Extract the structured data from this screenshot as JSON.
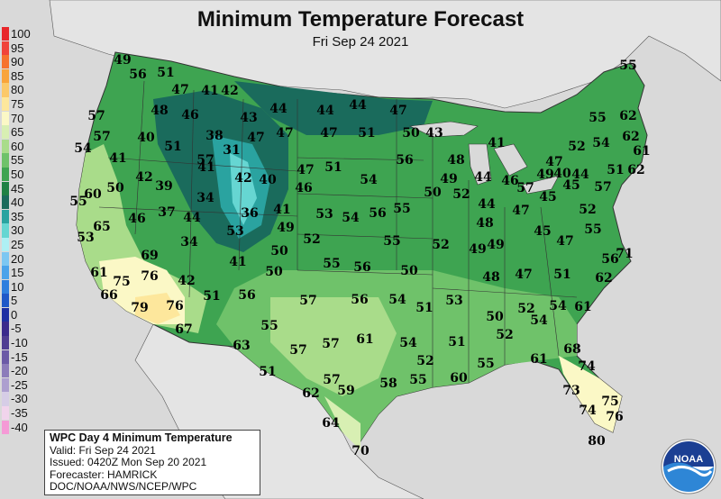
{
  "title": "Minimum Temperature Forecast",
  "subtitle": "Fri Sep 24 2021",
  "legend": [
    {
      "label": "100",
      "color": "#e8262a"
    },
    {
      "label": "95",
      "color": "#f0433a"
    },
    {
      "label": "90",
      "color": "#f6722e"
    },
    {
      "label": "85",
      "color": "#f9a43b"
    },
    {
      "label": "80",
      "color": "#fbc96a"
    },
    {
      "label": "75",
      "color": "#fde79c"
    },
    {
      "label": "70",
      "color": "#fbf8c6"
    },
    {
      "label": "65",
      "color": "#d8efb3"
    },
    {
      "label": "60",
      "color": "#a9dc8a"
    },
    {
      "label": "55",
      "color": "#6fc26a"
    },
    {
      "label": "50",
      "color": "#3ea451"
    },
    {
      "label": "45",
      "color": "#1f8144"
    },
    {
      "label": "40",
      "color": "#1a6b5c"
    },
    {
      "label": "35",
      "color": "#2aa3a0"
    },
    {
      "label": "30",
      "color": "#66d6d2"
    },
    {
      "label": "25",
      "color": "#aef0f4"
    },
    {
      "label": "20",
      "color": "#7cc7f2"
    },
    {
      "label": "15",
      "color": "#4aa3ea"
    },
    {
      "label": "10",
      "color": "#2f7fde"
    },
    {
      "label": "5",
      "color": "#1f58c8"
    },
    {
      "label": "0",
      "color": "#1d2fa3"
    },
    {
      "label": "-5",
      "color": "#3a2a8c"
    },
    {
      "label": "-10",
      "color": "#4f3d92"
    },
    {
      "label": "-15",
      "color": "#6b5aa6"
    },
    {
      "label": "-20",
      "color": "#8c7cba"
    },
    {
      "label": "-25",
      "color": "#ad9fcf"
    },
    {
      "label": "-30",
      "color": "#d6cde6"
    },
    {
      "label": "-35",
      "color": "#f1d4ec"
    },
    {
      "label": "-40",
      "color": "#f59ad6"
    }
  ],
  "infobox": {
    "heading": "WPC Day 4 Minimum Temperature",
    "valid": "Valid: Fri Sep 24 2021",
    "issued": "Issued: 0420Z Mon Sep 20 2021",
    "forecaster": "Forecaster: HAMRICK",
    "agency": "DOC/NOAA/NWS/NCEP/WPC"
  },
  "logo_text": "NOAA",
  "temperatures": [
    {
      "v": "49",
      "pos": [
        136,
        67
      ]
    },
    {
      "v": "56",
      "pos": [
        153,
        83
      ]
    },
    {
      "v": "51",
      "pos": [
        184,
        81
      ]
    },
    {
      "v": "47",
      "pos": [
        200,
        100
      ]
    },
    {
      "v": "41",
      "pos": [
        233,
        101
      ]
    },
    {
      "v": "42",
      "pos": [
        255,
        101
      ]
    },
    {
      "v": "55",
      "pos": [
        697,
        73
      ]
    },
    {
      "v": "57",
      "pos": [
        107,
        129
      ]
    },
    {
      "v": "48",
      "pos": [
        177,
        123
      ]
    },
    {
      "v": "46",
      "pos": [
        211,
        128
      ]
    },
    {
      "v": "43",
      "pos": [
        276,
        131
      ]
    },
    {
      "v": "44",
      "pos": [
        309,
        121
      ]
    },
    {
      "v": "44",
      "pos": [
        361,
        123
      ]
    },
    {
      "v": "44",
      "pos": [
        397,
        117
      ]
    },
    {
      "v": "47",
      "pos": [
        442,
        123
      ]
    },
    {
      "v": "55",
      "pos": [
        663,
        131
      ]
    },
    {
      "v": "62",
      "pos": [
        697,
        129
      ]
    },
    {
      "v": "57",
      "pos": [
        113,
        152
      ]
    },
    {
      "v": "40",
      "pos": [
        162,
        153
      ]
    },
    {
      "v": "51",
      "pos": [
        192,
        163
      ]
    },
    {
      "v": "38",
      "pos": [
        238,
        151
      ]
    },
    {
      "v": "47",
      "pos": [
        284,
        153
      ]
    },
    {
      "v": "47",
      "pos": [
        316,
        148
      ]
    },
    {
      "v": "47",
      "pos": [
        365,
        148
      ]
    },
    {
      "v": "51",
      "pos": [
        407,
        148
      ]
    },
    {
      "v": "50",
      "pos": [
        456,
        148
      ]
    },
    {
      "v": "43",
      "pos": [
        482,
        148
      ]
    },
    {
      "v": "54",
      "pos": [
        667,
        159
      ]
    },
    {
      "v": "62",
      "pos": [
        700,
        152
      ]
    },
    {
      "v": "61",
      "pos": [
        712,
        168
      ]
    },
    {
      "v": "52",
      "pos": [
        640,
        163
      ]
    },
    {
      "v": "41",
      "pos": [
        551,
        159
      ]
    },
    {
      "v": "54",
      "pos": [
        92,
        165
      ]
    },
    {
      "v": "41",
      "pos": [
        131,
        176
      ]
    },
    {
      "v": "57",
      "pos": [
        228,
        178
      ]
    },
    {
      "v": "31",
      "pos": [
        257,
        167
      ]
    },
    {
      "v": "47",
      "pos": [
        339,
        189
      ]
    },
    {
      "v": "51",
      "pos": [
        370,
        186
      ]
    },
    {
      "v": "56",
      "pos": [
        449,
        178
      ]
    },
    {
      "v": "48",
      "pos": [
        506,
        178
      ]
    },
    {
      "v": "44",
      "pos": [
        536,
        197
      ]
    },
    {
      "v": "47",
      "pos": [
        615,
        180
      ]
    },
    {
      "v": "49",
      "pos": [
        605,
        194
      ]
    },
    {
      "v": "40",
      "pos": [
        624,
        193
      ]
    },
    {
      "v": "44",
      "pos": [
        644,
        194
      ]
    },
    {
      "v": "51",
      "pos": [
        683,
        189
      ]
    },
    {
      "v": "62",
      "pos": [
        706,
        189
      ]
    },
    {
      "v": "42",
      "pos": [
        160,
        197
      ]
    },
    {
      "v": "41",
      "pos": [
        229,
        186
      ]
    },
    {
      "v": "42",
      "pos": [
        270,
        198
      ]
    },
    {
      "v": "40",
      "pos": [
        297,
        200
      ]
    },
    {
      "v": "46",
      "pos": [
        337,
        209
      ]
    },
    {
      "v": "54",
      "pos": [
        409,
        200
      ]
    },
    {
      "v": "50",
      "pos": [
        480,
        214
      ]
    },
    {
      "v": "49",
      "pos": [
        498,
        199
      ]
    },
    {
      "v": "52",
      "pos": [
        512,
        216
      ]
    },
    {
      "v": "46",
      "pos": [
        566,
        201
      ]
    },
    {
      "v": "57",
      "pos": [
        583,
        209
      ]
    },
    {
      "v": "45",
      "pos": [
        608,
        219
      ]
    },
    {
      "v": "45",
      "pos": [
        634,
        206
      ]
    },
    {
      "v": "57",
      "pos": [
        669,
        208
      ]
    },
    {
      "v": "55",
      "pos": [
        87,
        224
      ]
    },
    {
      "v": "60",
      "pos": [
        103,
        216
      ]
    },
    {
      "v": "50",
      "pos": [
        128,
        209
      ]
    },
    {
      "v": "39",
      "pos": [
        182,
        207
      ]
    },
    {
      "v": "34",
      "pos": [
        228,
        220
      ]
    },
    {
      "v": "41",
      "pos": [
        313,
        233
      ]
    },
    {
      "v": "53",
      "pos": [
        360,
        238
      ]
    },
    {
      "v": "54",
      "pos": [
        389,
        242
      ]
    },
    {
      "v": "56",
      "pos": [
        419,
        237
      ]
    },
    {
      "v": "55",
      "pos": [
        446,
        232
      ]
    },
    {
      "v": "44",
      "pos": [
        540,
        227
      ]
    },
    {
      "v": "47",
      "pos": [
        578,
        234
      ]
    },
    {
      "v": "52",
      "pos": [
        652,
        233
      ]
    },
    {
      "v": "46",
      "pos": [
        152,
        243
      ]
    },
    {
      "v": "37",
      "pos": [
        185,
        236
      ]
    },
    {
      "v": "44",
      "pos": [
        213,
        242
      ]
    },
    {
      "v": "36",
      "pos": [
        277,
        237
      ]
    },
    {
      "v": "49",
      "pos": [
        317,
        253
      ]
    },
    {
      "v": "48",
      "pos": [
        538,
        248
      ]
    },
    {
      "v": "45",
      "pos": [
        602,
        257
      ]
    },
    {
      "v": "55",
      "pos": [
        658,
        255
      ]
    },
    {
      "v": "65",
      "pos": [
        113,
        252
      ]
    },
    {
      "v": "53",
      "pos": [
        95,
        264
      ]
    },
    {
      "v": "53",
      "pos": [
        261,
        257
      ]
    },
    {
      "v": "52",
      "pos": [
        346,
        266
      ]
    },
    {
      "v": "55",
      "pos": [
        435,
        268
      ]
    },
    {
      "v": "52",
      "pos": [
        489,
        272
      ]
    },
    {
      "v": "49",
      "pos": [
        530,
        277
      ]
    },
    {
      "v": "49",
      "pos": [
        550,
        272
      ]
    },
    {
      "v": "47",
      "pos": [
        627,
        268
      ]
    },
    {
      "v": "69",
      "pos": [
        166,
        284
      ]
    },
    {
      "v": "34",
      "pos": [
        210,
        269
      ]
    },
    {
      "v": "50",
      "pos": [
        310,
        279
      ]
    },
    {
      "v": "56",
      "pos": [
        677,
        288
      ]
    },
    {
      "v": "71",
      "pos": [
        693,
        282
      ]
    },
    {
      "v": "61",
      "pos": [
        110,
        303
      ]
    },
    {
      "v": "76",
      "pos": [
        166,
        307
      ]
    },
    {
      "v": "41",
      "pos": [
        264,
        291
      ]
    },
    {
      "v": "50",
      "pos": [
        304,
        302
      ]
    },
    {
      "v": "55",
      "pos": [
        368,
        293
      ]
    },
    {
      "v": "56",
      "pos": [
        402,
        297
      ]
    },
    {
      "v": "50",
      "pos": [
        454,
        301
      ]
    },
    {
      "v": "48",
      "pos": [
        545,
        308
      ]
    },
    {
      "v": "47",
      "pos": [
        581,
        305
      ]
    },
    {
      "v": "51",
      "pos": [
        624,
        305
      ]
    },
    {
      "v": "62",
      "pos": [
        670,
        309
      ]
    },
    {
      "v": "75",
      "pos": [
        135,
        313
      ]
    },
    {
      "v": "42",
      "pos": [
        207,
        312
      ]
    },
    {
      "v": "66",
      "pos": [
        121,
        328
      ]
    },
    {
      "v": "51",
      "pos": [
        235,
        329
      ]
    },
    {
      "v": "56",
      "pos": [
        274,
        328
      ]
    },
    {
      "v": "57",
      "pos": [
        342,
        334
      ]
    },
    {
      "v": "56",
      "pos": [
        399,
        333
      ]
    },
    {
      "v": "54",
      "pos": [
        441,
        333
      ]
    },
    {
      "v": "53",
      "pos": [
        504,
        334
      ]
    },
    {
      "v": "51",
      "pos": [
        471,
        342
      ]
    },
    {
      "v": "79",
      "pos": [
        155,
        342
      ]
    },
    {
      "v": "76",
      "pos": [
        194,
        340
      ]
    },
    {
      "v": "52",
      "pos": [
        584,
        343
      ]
    },
    {
      "v": "54",
      "pos": [
        619,
        340
      ]
    },
    {
      "v": "61",
      "pos": [
        647,
        341
      ]
    },
    {
      "v": "50",
      "pos": [
        549,
        352
      ]
    },
    {
      "v": "54",
      "pos": [
        598,
        356
      ]
    },
    {
      "v": "67",
      "pos": [
        204,
        366
      ]
    },
    {
      "v": "55",
      "pos": [
        299,
        362
      ]
    },
    {
      "v": "61",
      "pos": [
        405,
        377
      ]
    },
    {
      "v": "52",
      "pos": [
        560,
        372
      ]
    },
    {
      "v": "63",
      "pos": [
        268,
        384
      ]
    },
    {
      "v": "57",
      "pos": [
        331,
        389
      ]
    },
    {
      "v": "57",
      "pos": [
        367,
        382
      ]
    },
    {
      "v": "54",
      "pos": [
        453,
        381
      ]
    },
    {
      "v": "51",
      "pos": [
        507,
        380
      ]
    },
    {
      "v": "68",
      "pos": [
        635,
        388
      ]
    },
    {
      "v": "52",
      "pos": [
        472,
        401
      ]
    },
    {
      "v": "55",
      "pos": [
        539,
        404
      ]
    },
    {
      "v": "61",
      "pos": [
        598,
        399
      ]
    },
    {
      "v": "74",
      "pos": [
        651,
        407
      ]
    },
    {
      "v": "51",
      "pos": [
        297,
        413
      ]
    },
    {
      "v": "57",
      "pos": [
        368,
        422
      ]
    },
    {
      "v": "58",
      "pos": [
        431,
        426
      ]
    },
    {
      "v": "55",
      "pos": [
        464,
        422
      ]
    },
    {
      "v": "60",
      "pos": [
        509,
        420
      ]
    },
    {
      "v": "62",
      "pos": [
        345,
        437
      ]
    },
    {
      "v": "59",
      "pos": [
        384,
        434
      ]
    },
    {
      "v": "73",
      "pos": [
        634,
        434
      ]
    },
    {
      "v": "75",
      "pos": [
        677,
        446
      ]
    },
    {
      "v": "74",
      "pos": [
        652,
        456
      ]
    },
    {
      "v": "76",
      "pos": [
        682,
        463
      ]
    },
    {
      "v": "64",
      "pos": [
        367,
        470
      ]
    },
    {
      "v": "70",
      "pos": [
        400,
        501
      ]
    },
    {
      "v": "80",
      "pos": [
        662,
        490
      ]
    }
  ]
}
